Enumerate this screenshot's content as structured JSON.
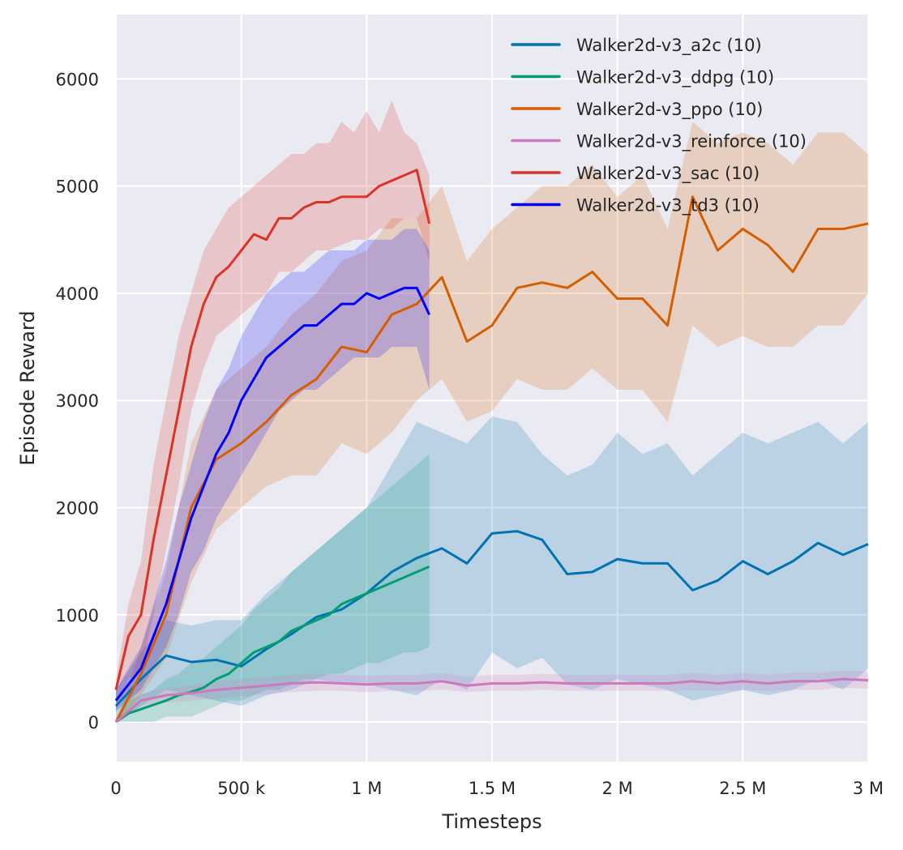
{
  "chart_data": {
    "type": "line",
    "title": "",
    "xlabel": "Timesteps",
    "ylabel": "Episode Reward",
    "xlim": [
      0,
      3000000
    ],
    "ylim": [
      -370,
      6600
    ],
    "grid": true,
    "legend_position": "top-right",
    "x_ticks": [
      {
        "value": 0,
        "label": "0"
      },
      {
        "value": 500000,
        "label": "500 k"
      },
      {
        "value": 1000000,
        "label": "1 M"
      },
      {
        "value": 1500000,
        "label": "1.5 M"
      },
      {
        "value": 2000000,
        "label": "2 M"
      },
      {
        "value": 2500000,
        "label": "2.5 M"
      },
      {
        "value": 3000000,
        "label": "3 M"
      }
    ],
    "y_ticks": [
      {
        "value": 0,
        "label": "0"
      },
      {
        "value": 1000,
        "label": "1000"
      },
      {
        "value": 2000,
        "label": "2000"
      },
      {
        "value": 3000,
        "label": "3000"
      },
      {
        "value": 4000,
        "label": "4000"
      },
      {
        "value": 5000,
        "label": "5000"
      },
      {
        "value": 6000,
        "label": "6000"
      }
    ],
    "series": [
      {
        "name": "Walker2d-v3_a2c (10)",
        "color": "#0173b2",
        "x": [
          0,
          100000,
          200000,
          300000,
          400000,
          500000,
          600000,
          700000,
          800000,
          900000,
          1000000,
          1100000,
          1200000,
          1300000,
          1400000,
          1500000,
          1600000,
          1700000,
          1800000,
          1900000,
          2000000,
          2100000,
          2200000,
          2300000,
          2400000,
          2500000,
          2600000,
          2700000,
          2800000,
          2900000,
          3000000
        ],
        "y": [
          150,
          400,
          620,
          560,
          580,
          520,
          680,
          820,
          980,
          1050,
          1200,
          1400,
          1530,
          1620,
          1480,
          1760,
          1780,
          1700,
          1380,
          1400,
          1520,
          1480,
          1480,
          1230,
          1320,
          1500,
          1380,
          1500,
          1670,
          1560,
          1660
        ],
        "lower": [
          0,
          150,
          300,
          250,
          200,
          150,
          250,
          300,
          400,
          350,
          350,
          300,
          250,
          400,
          300,
          650,
          500,
          600,
          350,
          300,
          400,
          350,
          300,
          200,
          250,
          300,
          250,
          300,
          400,
          300,
          500
        ],
        "upper": [
          300,
          650,
          950,
          900,
          950,
          950,
          1200,
          1400,
          1600,
          1800,
          2000,
          2400,
          2800,
          2700,
          2600,
          2850,
          2800,
          2500,
          2300,
          2400,
          2700,
          2500,
          2600,
          2300,
          2500,
          2700,
          2600,
          2700,
          2800,
          2600,
          2800
        ]
      },
      {
        "name": "Walker2d-v3_ddpg (10)",
        "color": "#029e73",
        "x": [
          0,
          50000,
          100000,
          150000,
          200000,
          250000,
          300000,
          350000,
          400000,
          450000,
          500000,
          550000,
          600000,
          650000,
          700000,
          750000,
          800000,
          850000,
          900000,
          950000,
          1000000,
          1050000,
          1100000,
          1150000,
          1200000,
          1250000
        ],
        "y": [
          0,
          80,
          120,
          160,
          200,
          250,
          280,
          320,
          400,
          450,
          550,
          650,
          700,
          750,
          850,
          900,
          950,
          1000,
          1100,
          1150,
          1200,
          1250,
          1300,
          1350,
          1400,
          1450
        ],
        "lower": [
          0,
          0,
          0,
          0,
          50,
          50,
          50,
          100,
          150,
          200,
          200,
          250,
          300,
          300,
          350,
          400,
          400,
          450,
          450,
          500,
          550,
          550,
          600,
          650,
          650,
          700
        ],
        "upper": [
          0,
          200,
          250,
          300,
          400,
          450,
          550,
          600,
          700,
          800,
          900,
          1050,
          1150,
          1250,
          1400,
          1500,
          1600,
          1700,
          1800,
          1900,
          2000,
          2100,
          2200,
          2300,
          2400,
          2500
        ]
      },
      {
        "name": "Walker2d-v3_ppo (10)",
        "color": "#d55e00",
        "x": [
          0,
          100000,
          200000,
          300000,
          400000,
          500000,
          600000,
          700000,
          800000,
          900000,
          1000000,
          1100000,
          1200000,
          1300000,
          1400000,
          1500000,
          1600000,
          1700000,
          1800000,
          1900000,
          2000000,
          2100000,
          2200000,
          2300000,
          2400000,
          2500000,
          2600000,
          2700000,
          2800000,
          2900000,
          3000000
        ],
        "y": [
          0,
          450,
          1000,
          2000,
          2450,
          2600,
          2800,
          3050,
          3200,
          3500,
          3450,
          3800,
          3900,
          4150,
          3550,
          3700,
          4050,
          4100,
          4050,
          4200,
          3950,
          3950,
          3700,
          4900,
          4400,
          4600,
          4450,
          4200,
          4600,
          4600,
          4650
        ],
        "lower": [
          0,
          250,
          600,
          1300,
          1800,
          2000,
          2200,
          2300,
          2300,
          2600,
          2500,
          2700,
          3000,
          3200,
          2800,
          2900,
          3200,
          3100,
          3100,
          3300,
          3100,
          3100,
          2800,
          3700,
          3500,
          3600,
          3500,
          3500,
          3700,
          3700,
          4000
        ],
        "upper": [
          0,
          700,
          1400,
          2600,
          3100,
          3300,
          3500,
          3800,
          4000,
          4300,
          4400,
          4700,
          4700,
          5000,
          4300,
          4600,
          4800,
          5000,
          5000,
          5200,
          4900,
          5100,
          4600,
          5600,
          5400,
          5500,
          5400,
          5200,
          5500,
          5500,
          5300
        ]
      },
      {
        "name": "Walker2d-v3_reinforce (10)",
        "color": "#cc78bc",
        "x": [
          0,
          100000,
          200000,
          300000,
          400000,
          500000,
          600000,
          700000,
          800000,
          900000,
          1000000,
          1100000,
          1200000,
          1300000,
          1400000,
          1500000,
          1600000,
          1700000,
          1800000,
          1900000,
          2000000,
          2100000,
          2200000,
          2300000,
          2400000,
          2500000,
          2600000,
          2700000,
          2800000,
          2900000,
          3000000
        ],
        "y": [
          0,
          200,
          250,
          270,
          300,
          320,
          340,
          360,
          370,
          360,
          350,
          360,
          360,
          380,
          340,
          360,
          360,
          370,
          360,
          360,
          360,
          360,
          360,
          380,
          360,
          380,
          360,
          380,
          380,
          400,
          390
        ],
        "lower": [
          0,
          150,
          180,
          200,
          220,
          240,
          260,
          280,
          290,
          290,
          280,
          290,
          290,
          300,
          280,
          290,
          290,
          300,
          290,
          290,
          290,
          290,
          290,
          300,
          290,
          300,
          290,
          300,
          300,
          320,
          310
        ],
        "upper": [
          0,
          260,
          320,
          340,
          380,
          400,
          420,
          440,
          450,
          440,
          430,
          440,
          440,
          460,
          420,
          440,
          440,
          450,
          440,
          440,
          440,
          440,
          440,
          460,
          440,
          460,
          440,
          460,
          460,
          480,
          470
        ]
      },
      {
        "name": "Walker2d-v3_sac (10)",
        "color": "#dc3328",
        "x": [
          0,
          50000,
          100000,
          150000,
          200000,
          250000,
          300000,
          350000,
          400000,
          450000,
          500000,
          550000,
          600000,
          650000,
          700000,
          750000,
          800000,
          850000,
          900000,
          950000,
          1000000,
          1050000,
          1100000,
          1150000,
          1200000,
          1250000
        ],
        "y": [
          300,
          800,
          1000,
          1700,
          2300,
          2900,
          3500,
          3900,
          4150,
          4250,
          4400,
          4550,
          4500,
          4700,
          4700,
          4800,
          4850,
          4850,
          4900,
          4900,
          4900,
          5000,
          5050,
          5100,
          5150,
          4650
        ],
        "lower": [
          100,
          400,
          500,
          1000,
          1600,
          2200,
          2900,
          3300,
          3600,
          3700,
          3800,
          3900,
          4000,
          4200,
          4200,
          4300,
          4400,
          4400,
          4450,
          4500,
          4500,
          4600,
          4600,
          4700,
          4700,
          4300
        ],
        "upper": [
          400,
          1100,
          1500,
          2400,
          3000,
          3600,
          4000,
          4400,
          4600,
          4800,
          4900,
          5000,
          5100,
          5200,
          5300,
          5300,
          5400,
          5400,
          5600,
          5500,
          5700,
          5500,
          5800,
          5500,
          5400,
          5100
        ]
      },
      {
        "name": "Walker2d-v3_td3 (10)",
        "color": "#0000ff",
        "x": [
          0,
          50000,
          100000,
          150000,
          200000,
          250000,
          300000,
          350000,
          400000,
          450000,
          500000,
          550000,
          600000,
          650000,
          700000,
          750000,
          800000,
          850000,
          900000,
          950000,
          1000000,
          1050000,
          1100000,
          1150000,
          1200000,
          1250000
        ],
        "y": [
          200,
          350,
          500,
          800,
          1100,
          1500,
          1900,
          2200,
          2500,
          2700,
          3000,
          3200,
          3400,
          3500,
          3600,
          3700,
          3700,
          3800,
          3900,
          3900,
          4000,
          3950,
          4000,
          4050,
          4050,
          3800
        ],
        "lower": [
          100,
          200,
          300,
          500,
          700,
          1000,
          1400,
          1600,
          1900,
          2100,
          2300,
          2500,
          2700,
          2900,
          3000,
          3100,
          3100,
          3200,
          3300,
          3400,
          3400,
          3400,
          3500,
          3500,
          3500,
          3100
        ],
        "upper": [
          300,
          500,
          700,
          1100,
          1500,
          2000,
          2400,
          2800,
          3100,
          3300,
          3600,
          3800,
          4000,
          4100,
          4200,
          4200,
          4300,
          4400,
          4400,
          4400,
          4500,
          4500,
          4500,
          4600,
          4600,
          4400
        ]
      }
    ]
  }
}
